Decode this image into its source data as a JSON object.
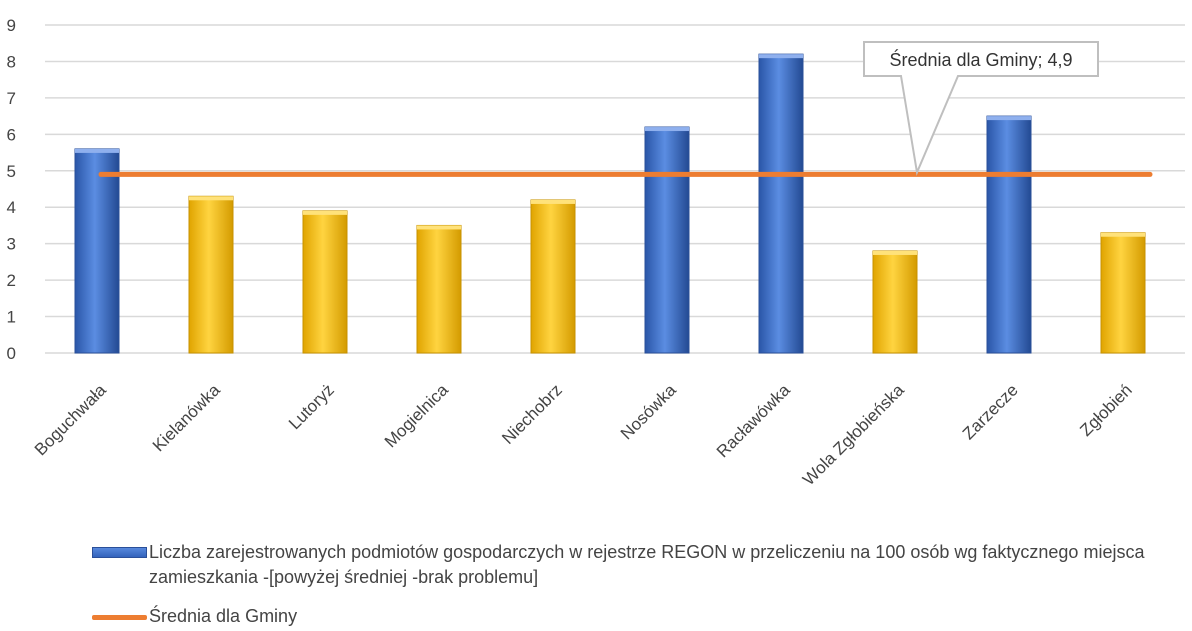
{
  "chart_data": {
    "type": "bar",
    "categories": [
      "Boguchwała",
      "Kielanówka",
      "Lutoryż",
      "Mogielnica",
      "Niechobrz",
      "Nosówka",
      "Racławówka",
      "Wola Zgłobieńska",
      "Zarzecze",
      "Zgłobień"
    ],
    "values": [
      5.6,
      4.3,
      3.9,
      3.5,
      4.2,
      6.2,
      8.2,
      2.8,
      6.5,
      3.3
    ],
    "above_average": [
      true,
      false,
      false,
      false,
      false,
      true,
      true,
      false,
      true,
      false
    ],
    "average": 4.9,
    "ylim": [
      0,
      9
    ],
    "yticks": [
      "0",
      "1",
      "2",
      "3",
      "4",
      "5",
      "6",
      "7",
      "8",
      "9"
    ],
    "grid": true,
    "annotation": "Średnia dla Gminy; 4,9",
    "legend": {
      "position": "bottom",
      "bar_label": "Liczba zarejestrowanych podmiotów gospodarczych w rejestrze REGON w przeliczeniu na 100 osób wg faktycznego miejsca zamieszkania -[powyżej średniej -brak problemu]",
      "line_label": "Średnia dla Gminy"
    },
    "colors": {
      "above": "#4472c4",
      "below": "#ffc000",
      "average_line": "#ed7d31",
      "grid": "#d9d9d9"
    }
  }
}
